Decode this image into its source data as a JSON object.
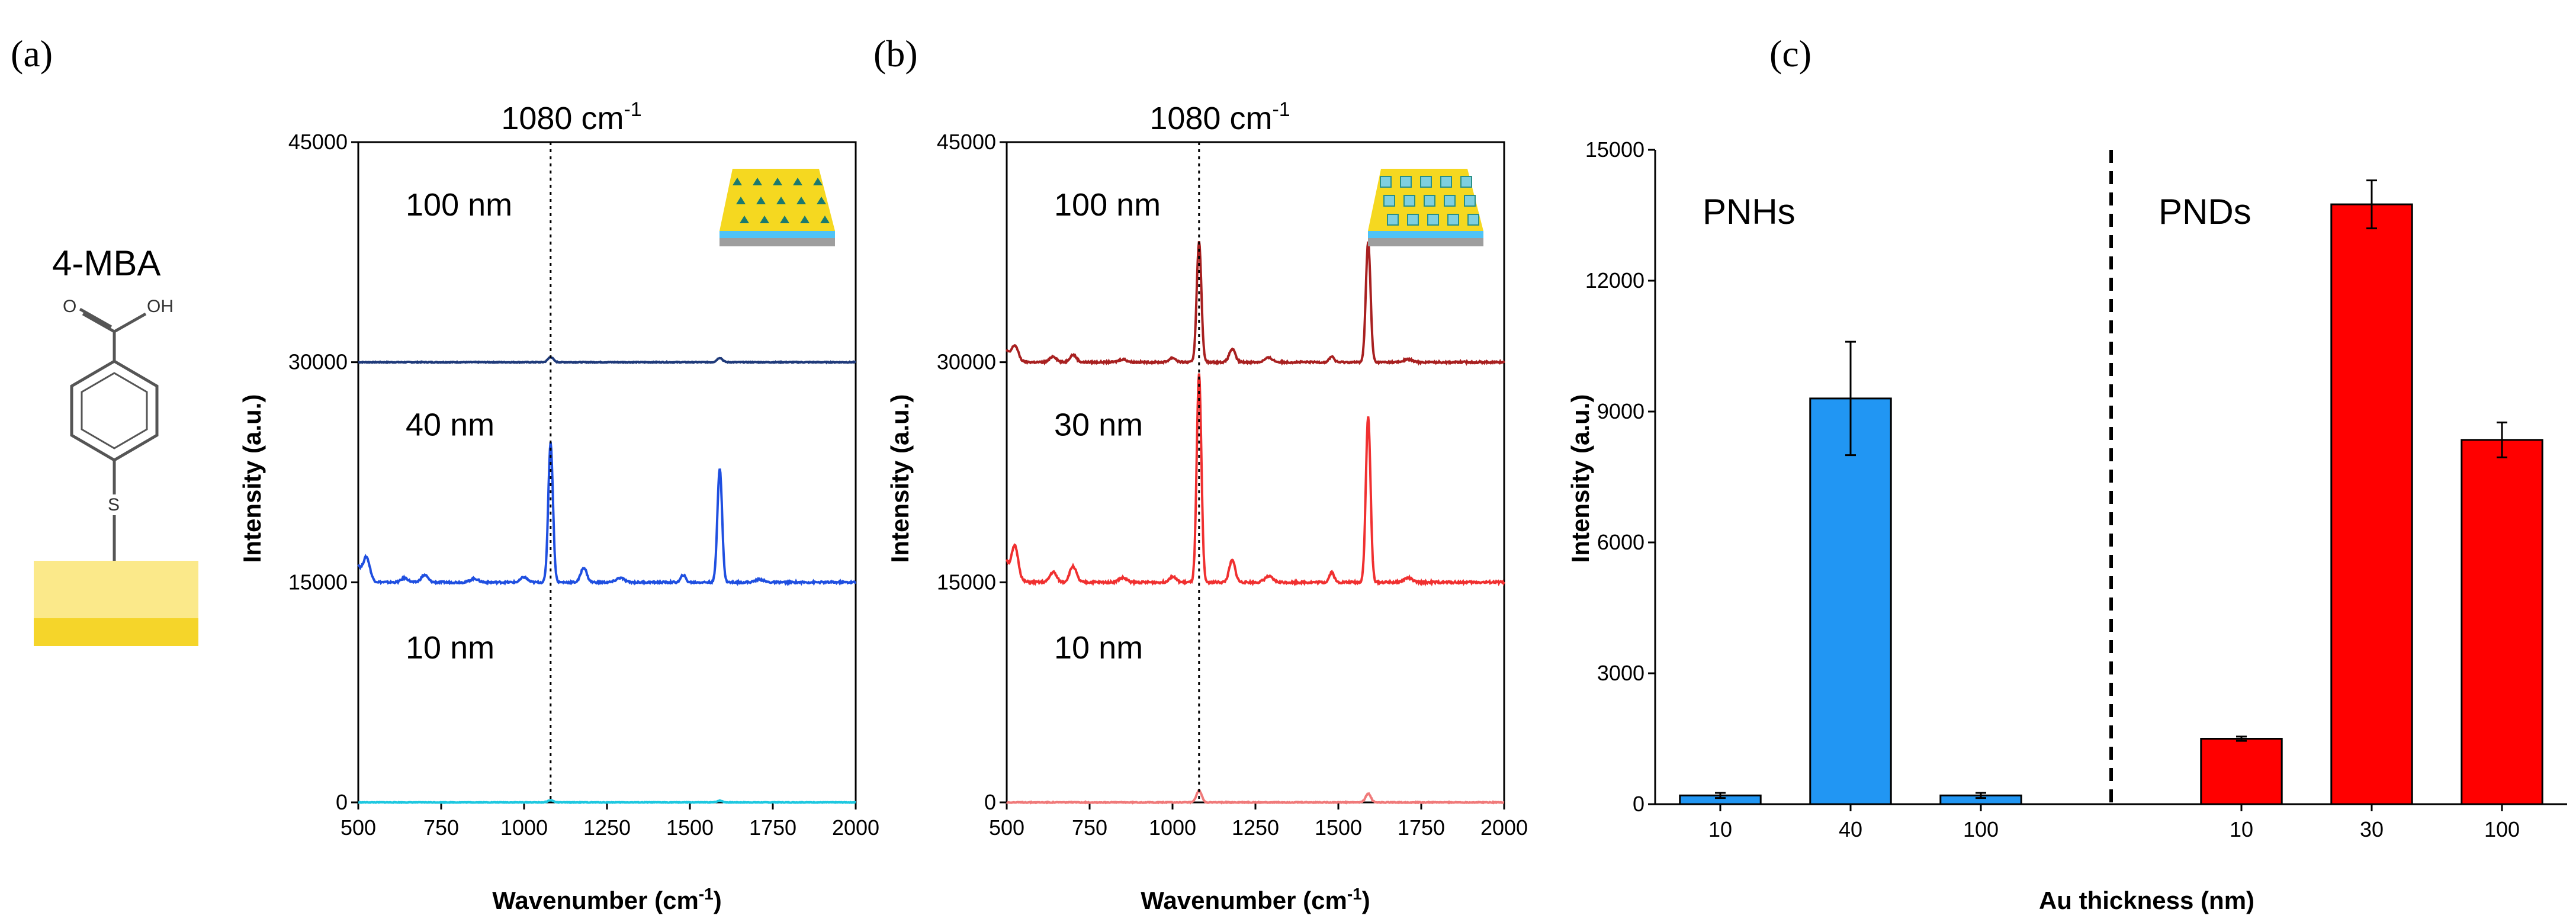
{
  "figure": {
    "panels": [
      "(a)",
      "(b)",
      "(c)"
    ],
    "molecule": {
      "name": "4-MBA",
      "atoms": {
        "o1": "O",
        "o2": "OH",
        "s": "S"
      }
    }
  },
  "chart_data": [
    {
      "id": "a",
      "type": "line",
      "title": "",
      "peak_label": "1080 cm-1",
      "peak_label_base": "1080 cm",
      "peak_label_sup": "-1",
      "xlabel": "Wavenumber (cm-1)",
      "xlabel_base": "Wavenumber (cm",
      "xlabel_sup": "-1",
      "xlabel_close": ")",
      "ylabel": "Intensity (a.u.)",
      "xlim": [
        500,
        2000
      ],
      "ylim": [
        0,
        45000
      ],
      "xticks": [
        "500",
        "750",
        "1000",
        "1250",
        "1500",
        "1750",
        "2000"
      ],
      "yticks": [
        "0",
        "15000",
        "30000",
        "45000"
      ],
      "peak_line_x": 1080,
      "inset": "pnh",
      "series": [
        {
          "name": "100 nm",
          "color": "#1f3a7a",
          "baseline": 30000,
          "peaks": [
            [
              1080,
              350,
              8
            ],
            [
              1590,
              300,
              8
            ]
          ],
          "start_bump": 0,
          "noise": 60
        },
        {
          "name": "40 nm",
          "color": "#1f4fe0",
          "baseline": 15000,
          "peaks": [
            [
              525,
              1500,
              10
            ],
            [
              640,
              300,
              10
            ],
            [
              700,
              500,
              10
            ],
            [
              850,
              250,
              12
            ],
            [
              1000,
              350,
              10
            ],
            [
              1080,
              9500,
              7
            ],
            [
              1180,
              1000,
              9
            ],
            [
              1290,
              300,
              12
            ],
            [
              1480,
              500,
              7
            ],
            [
              1590,
              7800,
              7
            ],
            [
              1710,
              200,
              12
            ]
          ],
          "start_bump": 1200,
          "noise": 120
        },
        {
          "name": "10 nm",
          "color": "#1ec8e0",
          "baseline": 0,
          "peaks": [
            [
              1080,
              150,
              8
            ],
            [
              1590,
              120,
              8
            ]
          ],
          "start_bump": 0,
          "noise": 40
        }
      ],
      "labels": [
        {
          "text": "100 nm",
          "y": 40000
        },
        {
          "text": "40 nm",
          "y": 25000
        },
        {
          "text": "10 nm",
          "y": 9800
        }
      ]
    },
    {
      "id": "b",
      "type": "line",
      "title": "",
      "peak_label": "1080 cm-1",
      "peak_label_base": "1080 cm",
      "peak_label_sup": "-1",
      "xlabel": "Wavenumber (cm-1)",
      "xlabel_base": "Wavenumber (cm",
      "xlabel_sup": "-1",
      "xlabel_close": ")",
      "ylabel": "Intensity (a.u.)",
      "xlim": [
        500,
        2000
      ],
      "ylim": [
        0,
        45000
      ],
      "xticks": [
        "500",
        "750",
        "1000",
        "1250",
        "1500",
        "1750",
        "2000"
      ],
      "yticks": [
        "0",
        "15000",
        "30000",
        "45000"
      ],
      "peak_line_x": 1080,
      "inset": "pnd",
      "series": [
        {
          "name": "100 nm",
          "color": "#a82020",
          "baseline": 30000,
          "peaks": [
            [
              525,
              1000,
              10
            ],
            [
              640,
              400,
              10
            ],
            [
              700,
              500,
              10
            ],
            [
              850,
              200,
              12
            ],
            [
              1000,
              300,
              10
            ],
            [
              1080,
              8200,
              7
            ],
            [
              1180,
              900,
              9
            ],
            [
              1290,
              300,
              12
            ],
            [
              1480,
              400,
              7
            ],
            [
              1590,
              8200,
              7
            ],
            [
              1710,
              200,
              12
            ]
          ],
          "start_bump": 800,
          "noise": 120
        },
        {
          "name": "30 nm",
          "color": "#f03030",
          "baseline": 15000,
          "peaks": [
            [
              525,
              2200,
              10
            ],
            [
              640,
              700,
              10
            ],
            [
              700,
              1100,
              10
            ],
            [
              850,
              300,
              12
            ],
            [
              1000,
              400,
              10
            ],
            [
              1080,
              14200,
              7
            ],
            [
              1180,
              1500,
              9
            ],
            [
              1290,
              400,
              12
            ],
            [
              1480,
              700,
              7
            ],
            [
              1590,
              11300,
              7
            ],
            [
              1710,
              300,
              12
            ]
          ],
          "start_bump": 1500,
          "noise": 140
        },
        {
          "name": "10 nm",
          "color": "#f07a7a",
          "baseline": 0,
          "peaks": [
            [
              1080,
              800,
              8
            ],
            [
              1590,
              600,
              8
            ]
          ],
          "start_bump": 0,
          "noise": 60
        }
      ],
      "labels": [
        {
          "text": "100 nm",
          "y": 40000
        },
        {
          "text": "30 nm",
          "y": 25000
        },
        {
          "text": "10 nm",
          "y": 9800
        }
      ]
    },
    {
      "id": "c",
      "type": "bar",
      "title": "",
      "xlabel": "Au thickness (nm)",
      "ylabel": "Intensity (a.u.)",
      "ylim": [
        0,
        15000
      ],
      "yticks": [
        "0",
        "3000",
        "6000",
        "9000",
        "12000",
        "15000"
      ],
      "groups": [
        {
          "name": "PNHs",
          "color": "#2196f3",
          "categories": [
            "10",
            "40",
            "100"
          ],
          "values": [
            200,
            9300,
            200
          ],
          "errors": [
            60,
            1300,
            60
          ]
        },
        {
          "name": "PNDs",
          "color": "#ff0000",
          "categories": [
            "10",
            "30",
            "100"
          ],
          "values": [
            1500,
            13750,
            8350
          ],
          "errors": [
            50,
            550,
            400
          ]
        }
      ]
    }
  ]
}
